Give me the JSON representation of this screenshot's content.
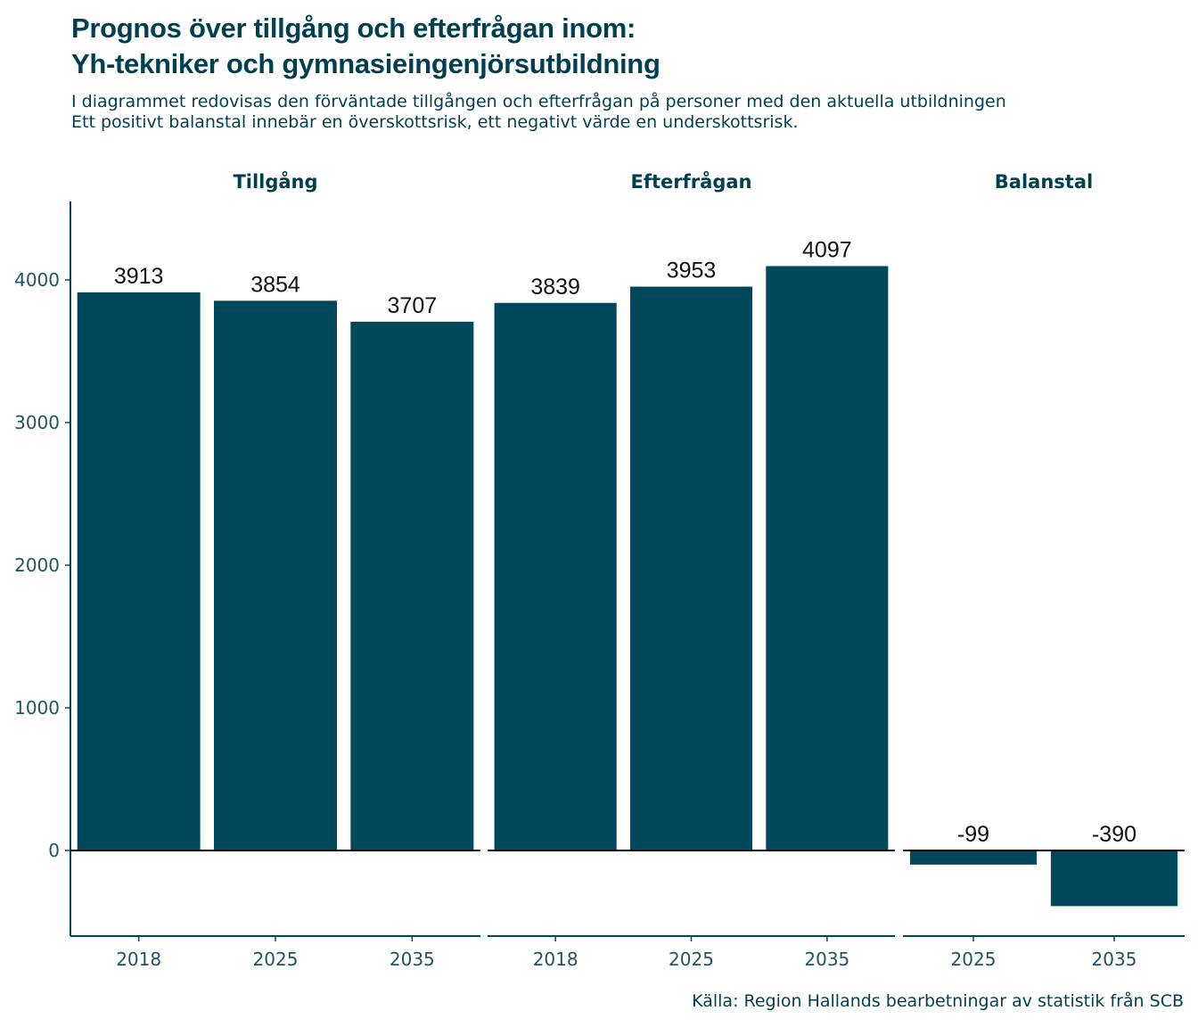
{
  "title_lines": [
    "Prognos över tillgång och efterfrågan inom:",
    "Yh-tekniker och gymnasieingenjörsutbildning"
  ],
  "subtitle_lines": [
    "I diagrammet redovisas den förväntade tillgången och efterfrågan på personer med den aktuella utbildningen",
    "Ett positivt balanstal innebär en överskottsrisk, ett negativt värde en underskottsrisk."
  ],
  "caption": "Källa: Region Hallands bearbetningar av statistik från SCB",
  "colors": {
    "bar": "#00495d",
    "text": "#003f52",
    "axis": "#00495d",
    "zero_line": "#000000"
  },
  "chart_data": {
    "type": "bar",
    "ylim": [
      -600,
      4550
    ],
    "yticks": [
      0,
      1000,
      2000,
      3000,
      4000
    ],
    "grid": false,
    "legend": "none",
    "facets": [
      {
        "name": "Tillgång",
        "categories": [
          "2018",
          "2025",
          "2035"
        ],
        "values": [
          3913,
          3854,
          3707
        ],
        "labels": [
          "3913",
          "3854",
          "3707"
        ]
      },
      {
        "name": "Efterfrågan",
        "categories": [
          "2018",
          "2025",
          "2035"
        ],
        "values": [
          3839,
          3953,
          4097
        ],
        "labels": [
          "3839",
          "3953",
          "4097"
        ]
      },
      {
        "name": "Balanstal",
        "categories": [
          "2025",
          "2035"
        ],
        "values": [
          -99,
          -390
        ],
        "labels": [
          "-99",
          "-390"
        ]
      }
    ]
  }
}
